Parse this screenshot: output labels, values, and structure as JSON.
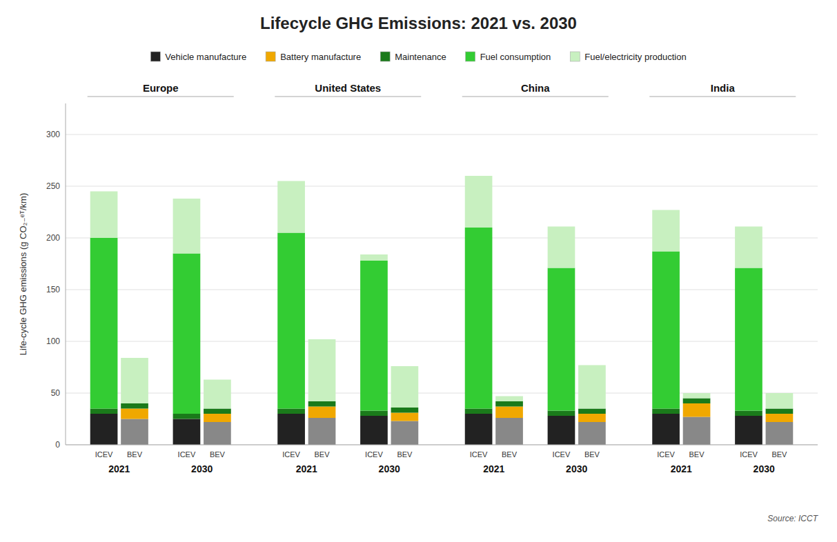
{
  "chart_data": {
    "type": "bar",
    "stacked": true,
    "title": "Lifecycle GHG Emissions: 2021 vs. 2030",
    "y_label": "Life-cycle GHG emissions (g CO₂₋ᵉᵀ/km)",
    "annotations": [
      "Source: ICCT"
    ],
    "categories": [
      "ICEV",
      "BEV",
      "ICEV",
      "BEV",
      "ICEV",
      "BEV",
      "ICEV",
      "BEV",
      "ICEV",
      "BEV",
      "ICEV",
      "BEV",
      "ICEV",
      "BEV",
      "ICEV",
      "BEV"
    ],
    "subgroup_labels": [
      "2021",
      "2030",
      "2021",
      "2030",
      "2021",
      "2030",
      "2021",
      "2030"
    ],
    "group_labels": [
      "Europe",
      "United States",
      "China",
      "India"
    ],
    "series": [
      {
        "name": "Vehicle manufacture",
        "color": "#222222",
        "colors": [
          "#222222",
          "#888888",
          "#222222",
          "#888888",
          "#222222",
          "#888888",
          "#222222",
          "#888888",
          "#222222",
          "#888888",
          "#222222",
          "#888888",
          "#222222",
          "#888888",
          "#222222",
          "#888888"
        ],
        "values": [
          30,
          25,
          25,
          22,
          30,
          26,
          28,
          23,
          30,
          26,
          28,
          22,
          30,
          27,
          28,
          22
        ]
      },
      {
        "name": "Battery manufacture",
        "color": "#f0a800",
        "values": [
          0,
          10,
          0,
          8,
          0,
          11,
          0,
          8,
          0,
          11,
          0,
          8,
          0,
          13,
          0,
          8
        ]
      },
      {
        "name": "Maintenance",
        "color": "#1a7a1a",
        "values": [
          5,
          5,
          5,
          5,
          5,
          5,
          5,
          5,
          5,
          5,
          5,
          5,
          5,
          5,
          5,
          5
        ]
      },
      {
        "name": "Fuel consumption",
        "color": "#33cc33",
        "values": [
          165,
          0,
          155,
          0,
          170,
          0,
          145,
          0,
          175,
          0,
          138,
          0,
          152,
          0,
          138,
          0
        ]
      },
      {
        "name": "Fuel/electricity production",
        "color": "#c8f0c0",
        "values": [
          45,
          44,
          53,
          28,
          50,
          60,
          6,
          40,
          50,
          5,
          40,
          42,
          40,
          5,
          40,
          15
        ]
      }
    ],
    "ylim": [
      0,
      330
    ],
    "yticks": [
      0,
      50,
      100,
      150,
      200,
      250,
      300
    ],
    "grid": true,
    "legend": "top"
  }
}
